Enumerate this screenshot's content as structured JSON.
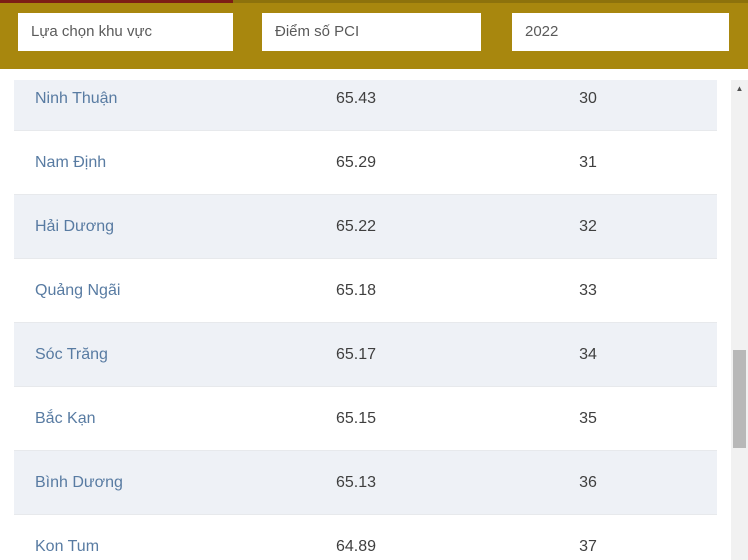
{
  "filters": {
    "region": {
      "value": "Lựa chọn khu vực"
    },
    "metric": {
      "value": "Điểm số PCI"
    },
    "year": {
      "value": "2022"
    }
  },
  "table": {
    "rows": [
      {
        "province": "Ninh Thuận",
        "pci_score": "65.43",
        "rank": "30"
      },
      {
        "province": "Nam Định",
        "pci_score": "65.29",
        "rank": "31"
      },
      {
        "province": "Hải Dương",
        "pci_score": "65.22",
        "rank": "32"
      },
      {
        "province": "Quảng Ngãi",
        "pci_score": "65.18",
        "rank": "33"
      },
      {
        "province": "Sóc Trăng",
        "pci_score": "65.17",
        "rank": "34"
      },
      {
        "province": "Bắc Kạn",
        "pci_score": "65.15",
        "rank": "35"
      },
      {
        "province": "Bình Dương",
        "pci_score": "65.13",
        "rank": "36"
      },
      {
        "province": "Kon Tum",
        "pci_score": "64.89",
        "rank": "37"
      }
    ]
  },
  "scrollbar": {
    "up_arrow_icon": "▲"
  },
  "colors": {
    "gold_bar": "#a8870e",
    "progress_red": "#7d1d15",
    "row_alt_bg": "#eef1f6",
    "link_blue": "#587ba2"
  }
}
